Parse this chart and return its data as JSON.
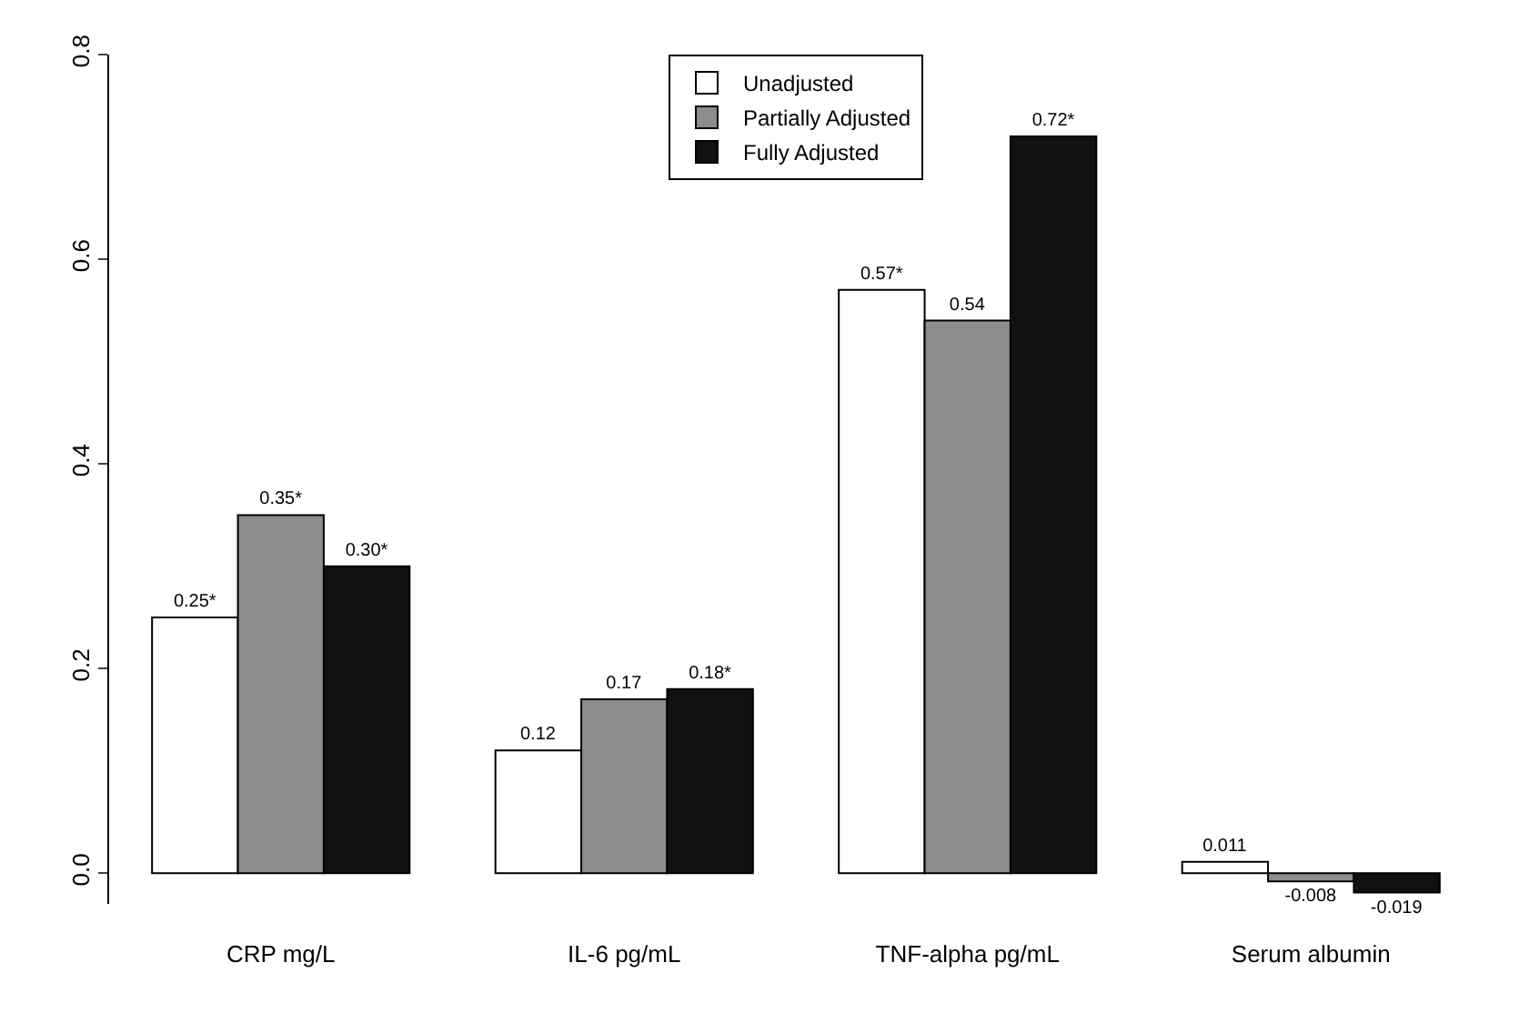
{
  "chart_data": {
    "type": "bar",
    "categories": [
      "CRP mg/L",
      "IL-6 pg/mL",
      "TNF-alpha pg/mL",
      "Serum albumin"
    ],
    "series": [
      {
        "name": "Unadjusted",
        "color": "#ffffff",
        "values": [
          0.25,
          0.12,
          0.57,
          0.011
        ],
        "value_labels": [
          "0.25*",
          "0.12",
          "0.57*",
          "0.011"
        ]
      },
      {
        "name": "Partially Adjusted",
        "color": "#8c8c8c",
        "values": [
          0.35,
          0.17,
          0.54,
          -0.008
        ],
        "value_labels": [
          "0.35*",
          "0.17",
          "0.54",
          "-0.008"
        ]
      },
      {
        "name": "Fully Adjusted",
        "color": "#111111",
        "values": [
          0.3,
          0.18,
          0.72,
          -0.019
        ],
        "value_labels": [
          "0.30*",
          "0.18*",
          "0.72*",
          "-0.019"
        ]
      }
    ],
    "ylim": [
      -0.03,
      0.8
    ],
    "yticks": [
      {
        "value": 0,
        "label": "0.0"
      },
      0.2,
      0.4,
      0.6,
      0.8
    ],
    "legend": "top"
  }
}
